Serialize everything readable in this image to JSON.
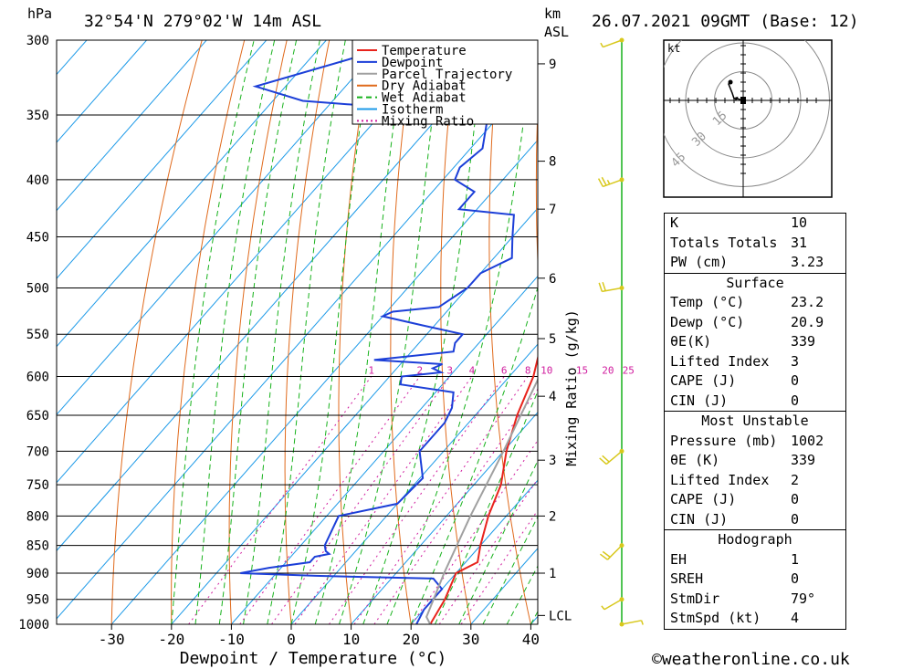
{
  "header": {
    "location": "32°54'N  279°02'W  14m  ASL",
    "datetime": "26.07.2021  09GMT  (Base: 12)",
    "hpa_unit": "hPa",
    "km_unit": "km",
    "asl_unit": "ASL"
  },
  "footer": {
    "credit": "©weatheronline.co.uk"
  },
  "chart_data": {
    "type": "line",
    "title": "",
    "xlabel": "Dewpoint / Temperature (°C)",
    "ylabel": "",
    "y2label": "Mixing Ratio (g/kg)",
    "xlim": [
      -40,
      40
    ],
    "ylim_hpa": [
      1000,
      300
    ],
    "y_log_scale": true,
    "skew": true,
    "x_ticks": [
      -30,
      -20,
      -10,
      0,
      10,
      20,
      30,
      40
    ],
    "pressure_ticks": [
      300,
      350,
      400,
      450,
      500,
      550,
      600,
      650,
      700,
      750,
      800,
      850,
      900,
      950,
      1000
    ],
    "km_ticks": [
      {
        "label": "9",
        "hpa": 315
      },
      {
        "label": "8",
        "hpa": 385
      },
      {
        "label": "7",
        "hpa": 425
      },
      {
        "label": "6",
        "hpa": 490
      },
      {
        "label": "5",
        "hpa": 555
      },
      {
        "label": "4",
        "hpa": 625
      },
      {
        "label": "3",
        "hpa": 713
      },
      {
        "label": "2",
        "hpa": 800
      },
      {
        "label": "1",
        "hpa": 900
      },
      {
        "label": "LCL",
        "hpa": 982
      }
    ],
    "mixing_ratio_labels": [
      "1",
      "2",
      "3",
      "4",
      "6",
      "8",
      "10",
      "15",
      "20",
      "25"
    ],
    "legend": [
      "Temperature",
      "Dewpoint",
      "Parcel Trajectory",
      "Dry Adiabat",
      "Wet Adiabat",
      "Isotherm",
      "Mixing Ratio"
    ],
    "legend_position": "top-right",
    "colors": {
      "temperature": "#e8231c",
      "dewpoint": "#1c3fd8",
      "parcel": "#a0a0a0",
      "dry_adiabat": "#e06a1c",
      "wet_adiabat": "#17b21c",
      "isotherm": "#1c9ae8",
      "mixing_ratio": "#d01c9e",
      "wind": "#d8c81c"
    },
    "series": [
      {
        "name": "Temperature",
        "points": [
          [
            1000,
            23.2
          ],
          [
            950,
            22
          ],
          [
            900,
            20
          ],
          [
            880,
            22
          ],
          [
            850,
            20
          ],
          [
            800,
            17
          ],
          [
            750,
            14.5
          ],
          [
            700,
            10.5
          ],
          [
            650,
            7
          ],
          [
            600,
            4
          ],
          [
            550,
            -0.5
          ],
          [
            500,
            -5.5
          ],
          [
            450,
            -12
          ],
          [
            400,
            -20
          ],
          [
            380,
            -23
          ],
          [
            350,
            -28
          ],
          [
            325,
            -33
          ],
          [
            300,
            -38
          ]
        ]
      },
      {
        "name": "Dewpoint",
        "points": [
          [
            1000,
            20.9
          ],
          [
            970,
            20
          ],
          [
            950,
            20
          ],
          [
            930,
            20
          ],
          [
            910,
            17
          ],
          [
            905,
            -3
          ],
          [
            900,
            -16
          ],
          [
            890,
            -12
          ],
          [
            880,
            -6
          ],
          [
            870,
            -6
          ],
          [
            865,
            -4
          ],
          [
            860,
            -5
          ],
          [
            850,
            -6
          ],
          [
            800,
            -8
          ],
          [
            780,
            0
          ],
          [
            740,
            0.5
          ],
          [
            700,
            -4
          ],
          [
            660,
            -4
          ],
          [
            640,
            -5
          ],
          [
            620,
            -7
          ],
          [
            610,
            -17
          ],
          [
            600,
            -18
          ],
          [
            595,
            -12
          ],
          [
            590,
            -14
          ],
          [
            585,
            -13
          ],
          [
            580,
            -25
          ],
          [
            570,
            -13
          ],
          [
            560,
            -14
          ],
          [
            550,
            -14
          ],
          [
            540,
            -22
          ],
          [
            530,
            -30
          ],
          [
            525,
            -29
          ],
          [
            520,
            -22
          ],
          [
            500,
            -20
          ],
          [
            485,
            -20
          ],
          [
            470,
            -17
          ],
          [
            450,
            -20
          ],
          [
            430,
            -23
          ],
          [
            425,
            -33
          ],
          [
            410,
            -33
          ],
          [
            400,
            -38
          ],
          [
            390,
            -39
          ],
          [
            375,
            -38
          ],
          [
            350,
            -42
          ],
          [
            340,
            -75
          ],
          [
            330,
            -85
          ],
          [
            310,
            -72
          ],
          [
            300,
            -65
          ]
        ]
      },
      {
        "name": "Parcel Trajectory",
        "points": [
          [
            1000,
            23.2
          ],
          [
            985,
            21.5
          ],
          [
            900,
            18
          ],
          [
            800,
            14
          ],
          [
            700,
            10
          ],
          [
            600,
            5
          ],
          [
            500,
            -2
          ],
          [
            450,
            -7
          ],
          [
            400,
            -13
          ],
          [
            350,
            -22
          ],
          [
            300,
            -33
          ]
        ]
      }
    ]
  },
  "hodograph": {
    "unit": "kt",
    "ring_labels": [
      "15",
      "30",
      "45"
    ],
    "points": [
      [
        0,
        0
      ],
      [
        -1,
        -0.3
      ],
      [
        -2,
        -0.5
      ],
      [
        -3,
        -1
      ],
      [
        -4,
        -0.5
      ],
      [
        -3.5,
        -1.5
      ],
      [
        -5,
        -1
      ],
      [
        -6,
        -4
      ],
      [
        -8,
        -9
      ],
      [
        -7,
        -10
      ]
    ]
  },
  "winds": [
    {
      "hpa": 1000,
      "dir": 79,
      "spd": 4
    },
    {
      "hpa": 950,
      "dir": 240,
      "spd": 5
    },
    {
      "hpa": 850,
      "dir": 225,
      "spd": 8
    },
    {
      "hpa": 700,
      "dir": 230,
      "spd": 10
    },
    {
      "hpa": 500,
      "dir": 260,
      "spd": 10
    },
    {
      "hpa": 400,
      "dir": 250,
      "spd": 15
    },
    {
      "hpa": 300,
      "dir": 250,
      "spd": 5
    }
  ],
  "stats": {
    "k": {
      "label": "K",
      "value": "10"
    },
    "tt": {
      "label": "Totals Totals",
      "value": "31"
    },
    "pw": {
      "label": "PW (cm)",
      "value": "3.23"
    },
    "surface": {
      "title": "Surface",
      "rows": [
        {
          "label": "Temp (°C)",
          "value": "23.2"
        },
        {
          "label": "Dewp (°C)",
          "value": "20.9"
        },
        {
          "label": "θE(K)",
          "value": "339"
        },
        {
          "label": "Lifted Index",
          "value": "3"
        },
        {
          "label": "CAPE (J)",
          "value": "0"
        },
        {
          "label": "CIN (J)",
          "value": "0"
        }
      ]
    },
    "mu": {
      "title": "Most Unstable",
      "rows": [
        {
          "label": "Pressure (mb)",
          "value": "1002"
        },
        {
          "label": "θE (K)",
          "value": "339"
        },
        {
          "label": "Lifted Index",
          "value": "2"
        },
        {
          "label": "CAPE (J)",
          "value": "0"
        },
        {
          "label": "CIN (J)",
          "value": "0"
        }
      ]
    },
    "hodo": {
      "title": "Hodograph",
      "rows": [
        {
          "label": "EH",
          "value": "1"
        },
        {
          "label": "SREH",
          "value": "0"
        },
        {
          "label": "StmDir",
          "value": "79°"
        },
        {
          "label": "StmSpd (kt)",
          "value": "4"
        }
      ]
    }
  }
}
